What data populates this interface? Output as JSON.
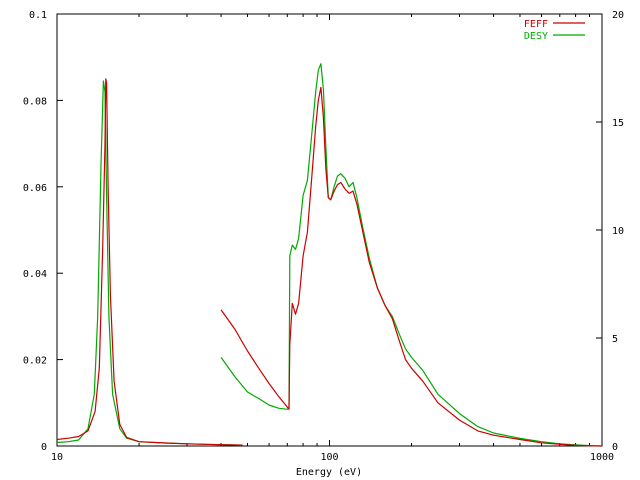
{
  "chart_data": {
    "type": "line",
    "title": "",
    "xlabel": "Energy (eV)",
    "ylabel": "",
    "y2label": "",
    "x_scale": "log",
    "xlim": [
      10,
      1000
    ],
    "ylim": [
      0,
      0.1
    ],
    "y2lim": [
      0,
      20
    ],
    "grid": false,
    "legend_position": "top-right",
    "x_ticks": [
      {
        "value": 10,
        "label": "10"
      },
      {
        "value": 100,
        "label": "100"
      },
      {
        "value": 1000,
        "label": "1000"
      }
    ],
    "x_minor_ticks": [
      20,
      30,
      40,
      50,
      60,
      70,
      80,
      90,
      200,
      300,
      400,
      500,
      600,
      700,
      800,
      900
    ],
    "y_ticks": [
      {
        "value": 0,
        "label": "0"
      },
      {
        "value": 0.02,
        "label": "0.02"
      },
      {
        "value": 0.04,
        "label": "0.04"
      },
      {
        "value": 0.06,
        "label": "0.06"
      },
      {
        "value": 0.08,
        "label": "0.08"
      },
      {
        "value": 0.1,
        "label": "0.1"
      }
    ],
    "y2_ticks": [
      {
        "value": 0,
        "label": "0"
      },
      {
        "value": 5,
        "label": "5"
      },
      {
        "value": 10,
        "label": "10"
      },
      {
        "value": 15,
        "label": "15"
      },
      {
        "value": 20,
        "label": "20"
      }
    ],
    "series": [
      {
        "name": "FEFF",
        "color": "#cc0000",
        "segments": [
          {
            "axis": "left",
            "points": [
              [
                10,
                0.0015
              ],
              [
                11,
                0.0018
              ],
              [
                12,
                0.0022
              ],
              [
                13,
                0.0035
              ],
              [
                13.8,
                0.008
              ],
              [
                14.3,
                0.018
              ],
              [
                14.7,
                0.045
              ],
              [
                15.0,
                0.07
              ],
              [
                15.1,
                0.085
              ],
              [
                15.2,
                0.084
              ],
              [
                15.4,
                0.06
              ],
              [
                15.7,
                0.035
              ],
              [
                16.2,
                0.015
              ],
              [
                17,
                0.005
              ],
              [
                18,
                0.002
              ],
              [
                20,
                0.001
              ],
              [
                25,
                0.0007
              ],
              [
                30,
                0.0005
              ],
              [
                35,
                0.0004
              ],
              [
                40,
                0.0003
              ],
              [
                48,
                0.0002
              ]
            ]
          },
          {
            "axis": "right",
            "points": [
              [
                40,
                6.3
              ],
              [
                45,
                5.4
              ],
              [
                50,
                4.4
              ],
              [
                55,
                3.6
              ],
              [
                60,
                2.9
              ],
              [
                65,
                2.3
              ],
              [
                69,
                1.9
              ],
              [
                71,
                1.7
              ],
              [
                71.5,
                4.7
              ],
              [
                73,
                6.6
              ],
              [
                75,
                6.1
              ],
              [
                77,
                6.6
              ],
              [
                80,
                8.8
              ],
              [
                83,
                9.9
              ],
              [
                86,
                12.4
              ],
              [
                89,
                14.8
              ],
              [
                91,
                16.0
              ],
              [
                93,
                16.6
              ],
              [
                95,
                15.2
              ],
              [
                97,
                12.8
              ],
              [
                99,
                11.5
              ],
              [
                101,
                11.4
              ],
              [
                104,
                11.8
              ],
              [
                107,
                12.1
              ],
              [
                110,
                12.2
              ],
              [
                114,
                11.9
              ],
              [
                118,
                11.7
              ],
              [
                122,
                11.8
              ],
              [
                126,
                11.2
              ],
              [
                132,
                10.0
              ],
              [
                140,
                8.5
              ],
              [
                150,
                7.3
              ],
              [
                160,
                6.5
              ],
              [
                170,
                5.9
              ],
              [
                180,
                4.9
              ],
              [
                190,
                4.0
              ],
              [
                200,
                3.6
              ],
              [
                220,
                3.0
              ],
              [
                250,
                2.0
              ],
              [
                300,
                1.2
              ],
              [
                350,
                0.7
              ],
              [
                400,
                0.5
              ],
              [
                500,
                0.3
              ],
              [
                600,
                0.15
              ],
              [
                700,
                0.08
              ],
              [
                800,
                0.03
              ],
              [
                900,
                0.01
              ],
              [
                1000,
                0.0
              ]
            ]
          }
        ]
      },
      {
        "name": "DESY",
        "color": "#00aa00",
        "segments": [
          {
            "axis": "left",
            "points": [
              [
                10,
                0.0008
              ],
              [
                11,
                0.001
              ],
              [
                12,
                0.0014
              ],
              [
                13,
                0.004
              ],
              [
                13.7,
                0.012
              ],
              [
                14.1,
                0.03
              ],
              [
                14.5,
                0.065
              ],
              [
                14.8,
                0.0845
              ],
              [
                15.0,
                0.082
              ],
              [
                15.2,
                0.058
              ],
              [
                15.5,
                0.03
              ],
              [
                16.0,
                0.012
              ],
              [
                17,
                0.004
              ],
              [
                18,
                0.0018
              ],
              [
                20,
                0.001
              ],
              [
                25,
                0.0007
              ],
              [
                30,
                0.0005
              ],
              [
                35,
                0.0004
              ],
              [
                40,
                0.0003
              ],
              [
                48,
                0.0002
              ]
            ]
          },
          {
            "axis": "right",
            "points": [
              [
                40,
                4.1
              ],
              [
                45,
                3.2
              ],
              [
                50,
                2.5
              ],
              [
                55,
                2.2
              ],
              [
                60,
                1.9
              ],
              [
                65,
                1.75
              ],
              [
                70,
                1.7
              ],
              [
                71,
                1.75
              ],
              [
                71.5,
                8.8
              ],
              [
                73,
                9.3
              ],
              [
                75,
                9.1
              ],
              [
                77,
                9.6
              ],
              [
                80,
                11.6
              ],
              [
                83,
                12.3
              ],
              [
                86,
                14.4
              ],
              [
                89,
                16.4
              ],
              [
                91,
                17.4
              ],
              [
                93,
                17.7
              ],
              [
                95,
                16.5
              ],
              [
                97,
                13.8
              ],
              [
                99,
                11.5
              ],
              [
                101,
                11.4
              ],
              [
                104,
                12.0
              ],
              [
                107,
                12.5
              ],
              [
                110,
                12.6
              ],
              [
                114,
                12.4
              ],
              [
                118,
                12.0
              ],
              [
                122,
                12.2
              ],
              [
                126,
                11.5
              ],
              [
                132,
                10.2
              ],
              [
                140,
                8.7
              ],
              [
                150,
                7.3
              ],
              [
                160,
                6.5
              ],
              [
                170,
                6.0
              ],
              [
                180,
                5.2
              ],
              [
                190,
                4.5
              ],
              [
                200,
                4.1
              ],
              [
                220,
                3.5
              ],
              [
                250,
                2.4
              ],
              [
                300,
                1.5
              ],
              [
                350,
                0.9
              ],
              [
                400,
                0.6
              ],
              [
                500,
                0.35
              ],
              [
                600,
                0.2
              ],
              [
                700,
                0.1
              ],
              [
                800,
                0.05
              ],
              [
                900,
                0.02
              ],
              [
                1000,
                0.0
              ]
            ]
          }
        ]
      }
    ]
  }
}
